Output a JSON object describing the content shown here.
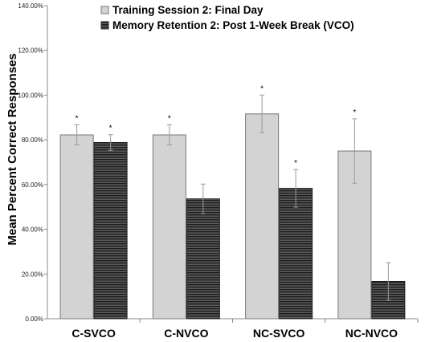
{
  "chart_data": {
    "type": "bar",
    "title": "",
    "xlabel": "",
    "ylabel": "Mean Percent Correct Responses",
    "ylim": [
      0,
      140
    ],
    "yticks": [
      "0.00%",
      "20.00%",
      "40.00%",
      "60.00%",
      "80.00%",
      "100.00%",
      "120.00%",
      "140.00%"
    ],
    "categories": [
      "C-SVCO",
      "C-NVCO",
      "NC-SVCO",
      "NC-NVCO"
    ],
    "legend_position": "top",
    "grid": false,
    "series": [
      {
        "name": "Training Session 2: Final Day",
        "color": "#d3d3d3",
        "pattern": "solid",
        "values": [
          82.2,
          82.2,
          91.6,
          75.0
        ],
        "error": [
          4.5,
          4.5,
          8.4,
          14.4
        ],
        "annotations": [
          "*",
          "*",
          "*",
          "*"
        ]
      },
      {
        "name": "Memory Retention 2: Post 1-Week Break (VCO)",
        "color": "#4a4a4a",
        "pattern": "horizontal-stripes",
        "values": [
          78.8,
          53.6,
          58.3,
          16.7
        ],
        "error": [
          3.5,
          6.6,
          8.4,
          8.4
        ],
        "annotations": [
          "*",
          "",
          "*",
          ""
        ]
      }
    ]
  }
}
